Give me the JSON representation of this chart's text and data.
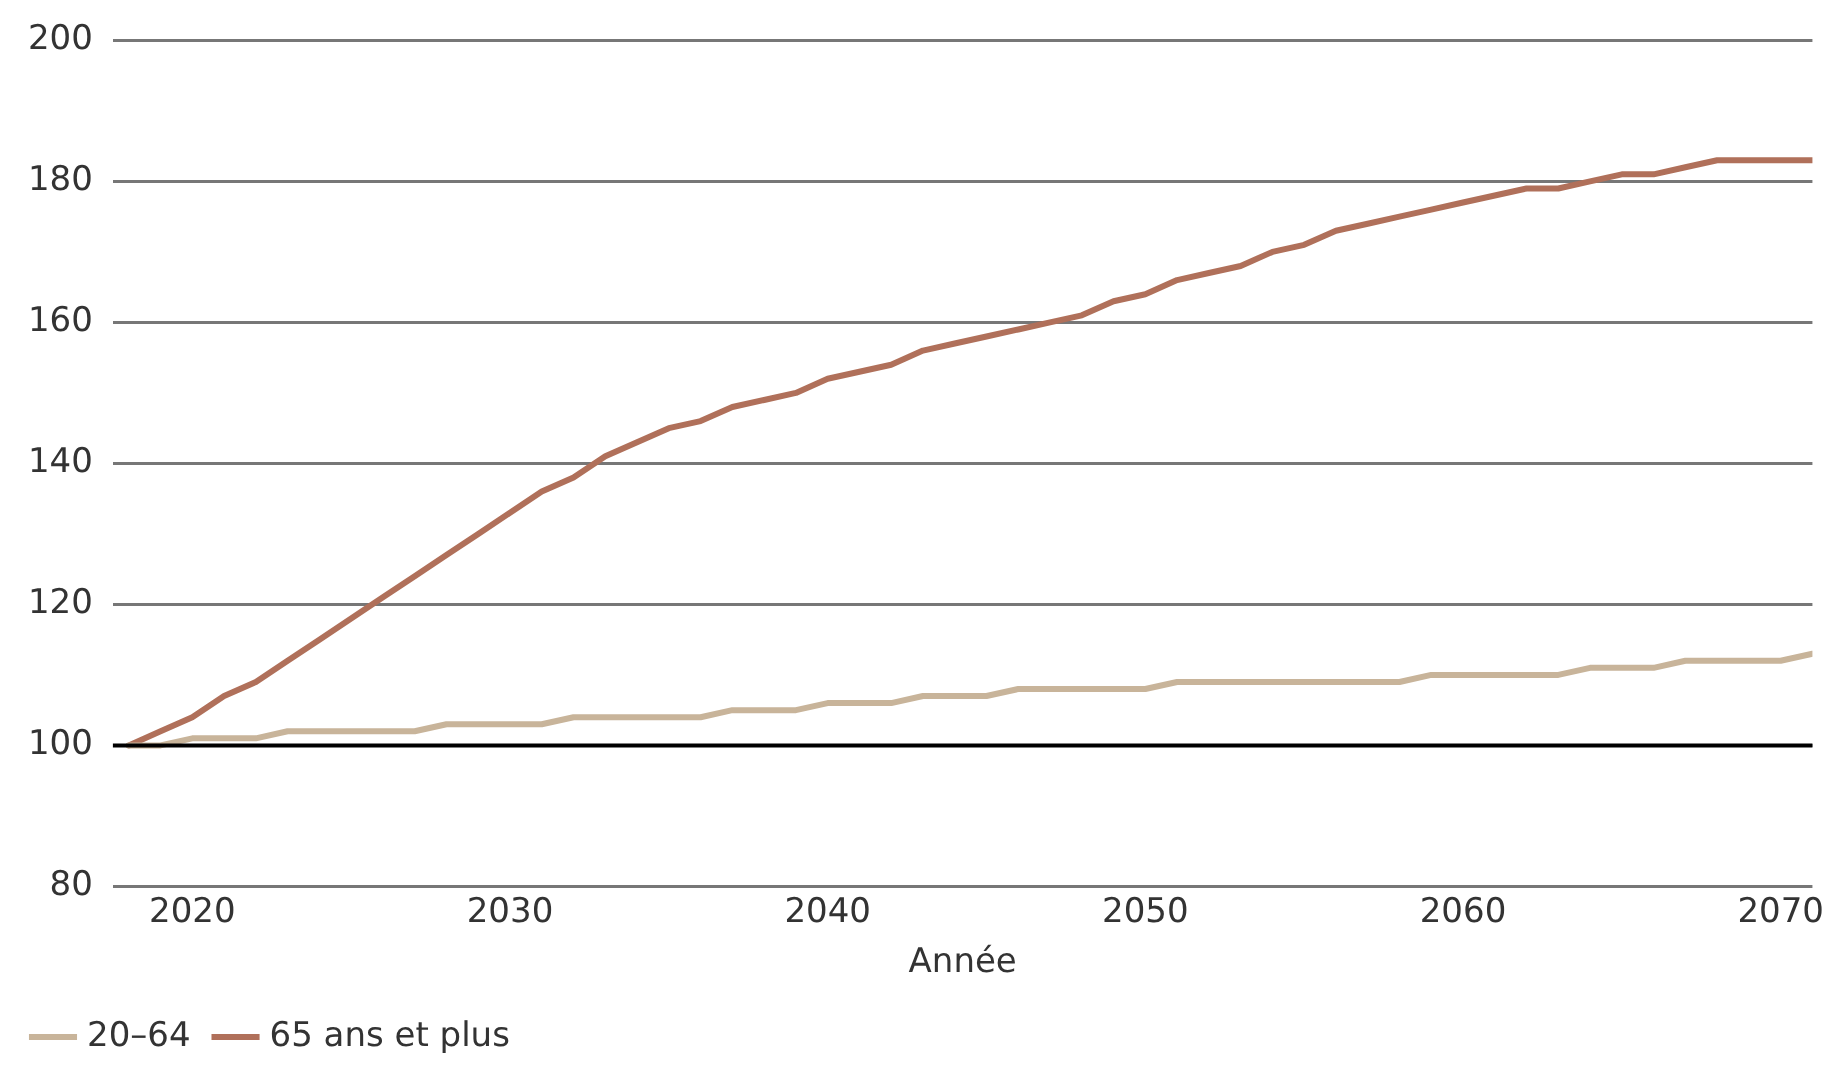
{
  "chart_data": {
    "type": "line",
    "xlabel": "Année",
    "x": [
      2018,
      2019,
      2020,
      2021,
      2022,
      2023,
      2024,
      2025,
      2026,
      2027,
      2028,
      2029,
      2030,
      2031,
      2032,
      2033,
      2034,
      2035,
      2036,
      2037,
      2038,
      2039,
      2040,
      2041,
      2042,
      2043,
      2044,
      2045,
      2046,
      2047,
      2048,
      2049,
      2050,
      2051,
      2052,
      2053,
      2054,
      2055,
      2056,
      2057,
      2058,
      2059,
      2060,
      2061,
      2062,
      2063,
      2064,
      2065,
      2066,
      2067,
      2068,
      2069,
      2070,
      2071
    ],
    "series": [
      {
        "name": "20–64",
        "color": "#c8b49a",
        "values": [
          100,
          100,
          101,
          101,
          101,
          102,
          102,
          102,
          102,
          102,
          103,
          103,
          103,
          103,
          104,
          104,
          104,
          104,
          104,
          105,
          105,
          105,
          106,
          106,
          106,
          107,
          107,
          107,
          108,
          108,
          108,
          108,
          108,
          109,
          109,
          109,
          109,
          109,
          109,
          109,
          109,
          110,
          110,
          110,
          110,
          110,
          111,
          111,
          111,
          112,
          112,
          112,
          112,
          113
        ]
      },
      {
        "name": "65 ans et plus",
        "color": "#b0705a",
        "values": [
          100,
          102,
          104,
          107,
          109,
          112,
          115,
          118,
          121,
          124,
          127,
          130,
          133,
          136,
          138,
          141,
          143,
          145,
          146,
          148,
          149,
          150,
          152,
          153,
          154,
          156,
          157,
          158,
          159,
          160,
          161,
          163,
          164,
          166,
          167,
          168,
          170,
          171,
          173,
          174,
          175,
          176,
          177,
          178,
          179,
          179,
          180,
          181,
          181,
          182,
          183,
          183,
          183,
          183
        ]
      }
    ],
    "xlim": [
      2017.5,
      2071
    ],
    "xticks": [
      2020,
      2030,
      2040,
      2050,
      2060,
      2070
    ],
    "ylim": [
      80,
      200
    ],
    "yticks": [
      80,
      100,
      120,
      140,
      160,
      180,
      200
    ],
    "ref_lines": [
      {
        "axis": "y",
        "value": 100,
        "color": "#000000"
      }
    ],
    "grid": "y",
    "legend": "bottom left",
    "marker": "none",
    "line_style": "solid"
  }
}
